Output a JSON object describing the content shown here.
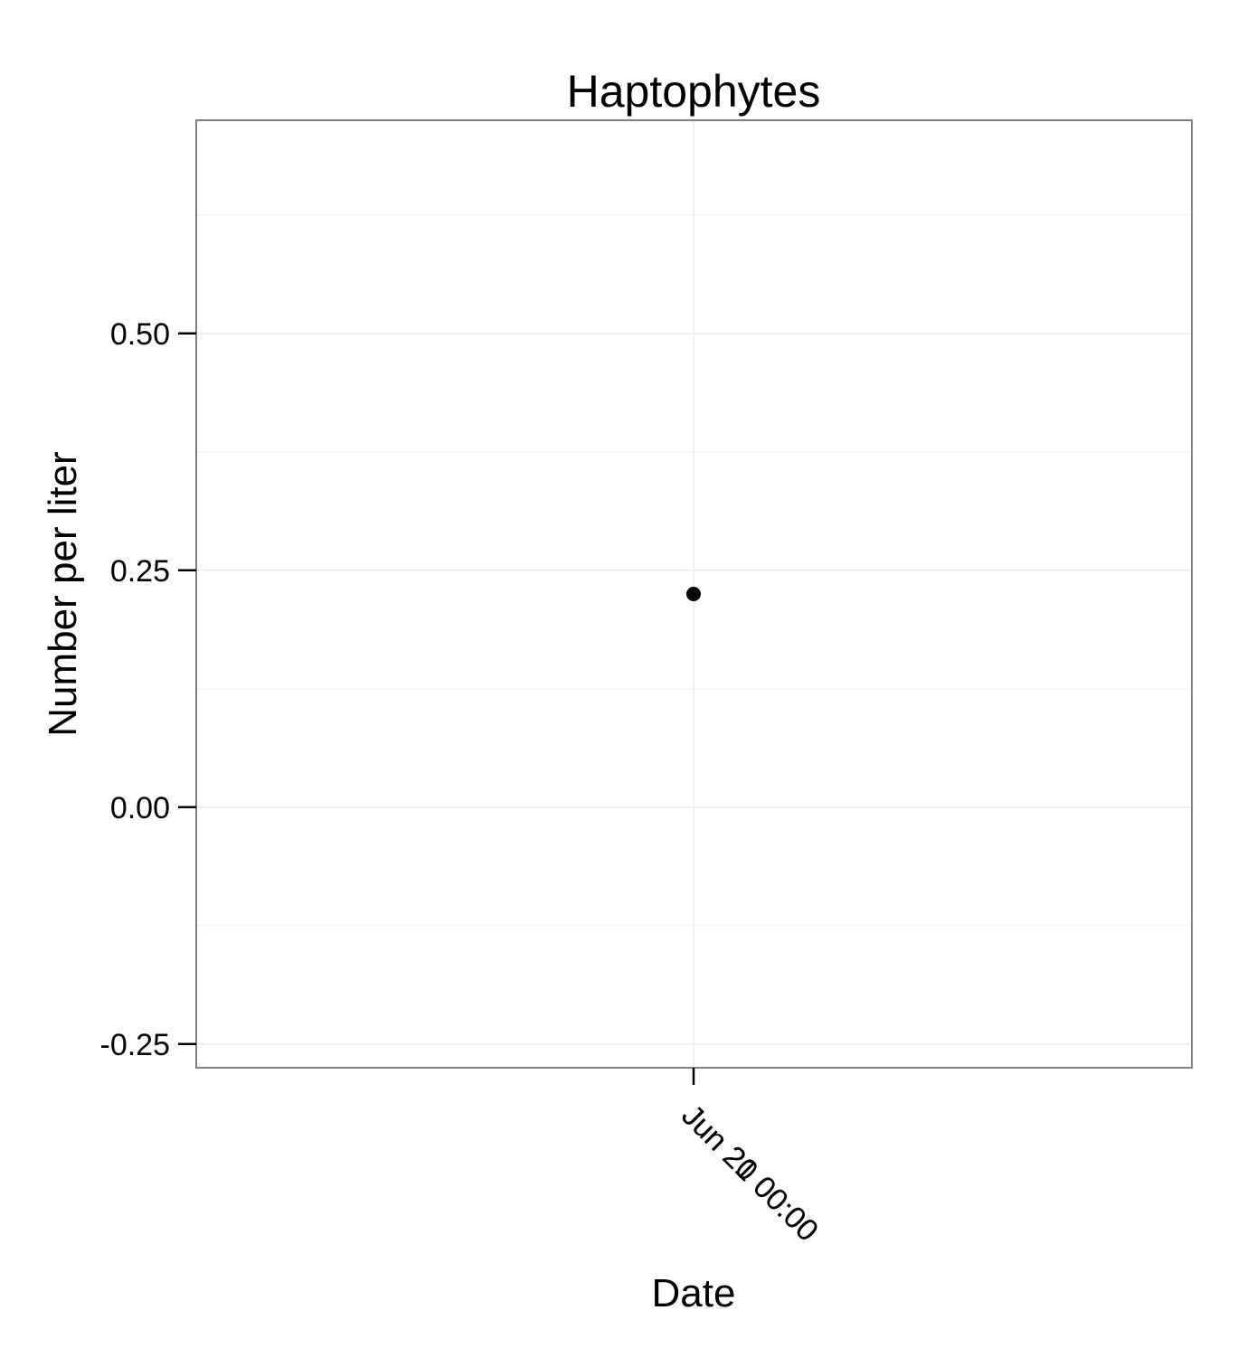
{
  "chart_data": {
    "type": "scatter",
    "title": "Haptophytes",
    "xlabel": "Date",
    "ylabel": "Number per liter",
    "x_tick_labels": [
      "Jun 20 00:00",
      "Jun 21 00:00"
    ],
    "y_ticks": [
      -0.25,
      0.0,
      0.25,
      0.5
    ],
    "y_tick_labels": [
      "-0.25",
      "0.00",
      "0.25",
      "0.50"
    ],
    "ylim": [
      -0.275,
      0.725
    ],
    "grid": true,
    "series": [
      {
        "values": [
          {
            "x": "Jun 21 00:00",
            "y": 0.225
          }
        ]
      }
    ],
    "colors": {
      "point": "#000000",
      "panel_border": "#7f7f7f",
      "grid_major": "#ebebeb",
      "grid_minor": "#f5f5f5",
      "tick": "#000000"
    }
  }
}
